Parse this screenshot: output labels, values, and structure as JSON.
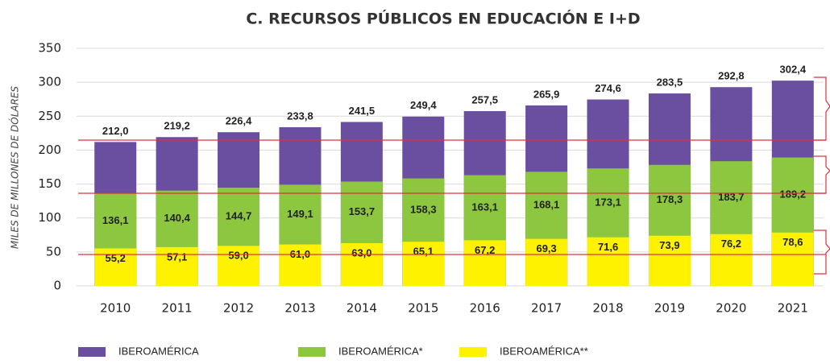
{
  "chart_data": {
    "type": "bar",
    "title": "C. RECURSOS PÚBLICOS EN EDUCACIÓN E I+D",
    "y_label": "MILES DE MILLONES DE DÓLARES",
    "categories": [
      "2010",
      "2011",
      "2012",
      "2013",
      "2014",
      "2015",
      "2016",
      "2017",
      "2018",
      "2019",
      "2020",
      "2021"
    ],
    "series": [
      {
        "name": "IBEROAMÉRICA",
        "color": "#6a4ea0",
        "values": [
          212.0,
          219.2,
          226.4,
          233.8,
          241.5,
          249.4,
          257.5,
          265.9,
          274.6,
          283.5,
          292.8,
          302.4
        ],
        "value_labels": [
          "212,0",
          "219,2",
          "226,4",
          "233,8",
          "241,5",
          "249,4",
          "257,5",
          "265,9",
          "274,6",
          "283,5",
          "292,8",
          "302,4"
        ]
      },
      {
        "name": "IBEROAMÉRICA*",
        "color": "#8dc63f",
        "values": [
          136.1,
          140.4,
          144.7,
          149.1,
          153.7,
          158.3,
          163.1,
          168.1,
          173.1,
          178.3,
          183.7,
          189.2
        ],
        "value_labels": [
          "136,1",
          "140,4",
          "144,7",
          "149,1",
          "153,7",
          "158,3",
          "163,1",
          "168,1",
          "173,1",
          "178,3",
          "183,7",
          "189,2"
        ]
      },
      {
        "name": "IBEROAMÉRICA**",
        "color": "#fff200",
        "values": [
          55.2,
          57.1,
          59.0,
          61.0,
          63.0,
          65.1,
          67.2,
          69.3,
          71.6,
          73.9,
          76.2,
          78.6
        ],
        "value_labels": [
          "55,2",
          "57,1",
          "59,0",
          "61,0",
          "63,0",
          "65,1",
          "67,2",
          "69,3",
          "71,6",
          "73,9",
          "76,2",
          "78,6"
        ]
      }
    ],
    "ylim": [
      0,
      350
    ],
    "yticks": [
      0,
      50,
      100,
      150,
      200,
      250,
      300,
      350
    ],
    "grid": true
  }
}
